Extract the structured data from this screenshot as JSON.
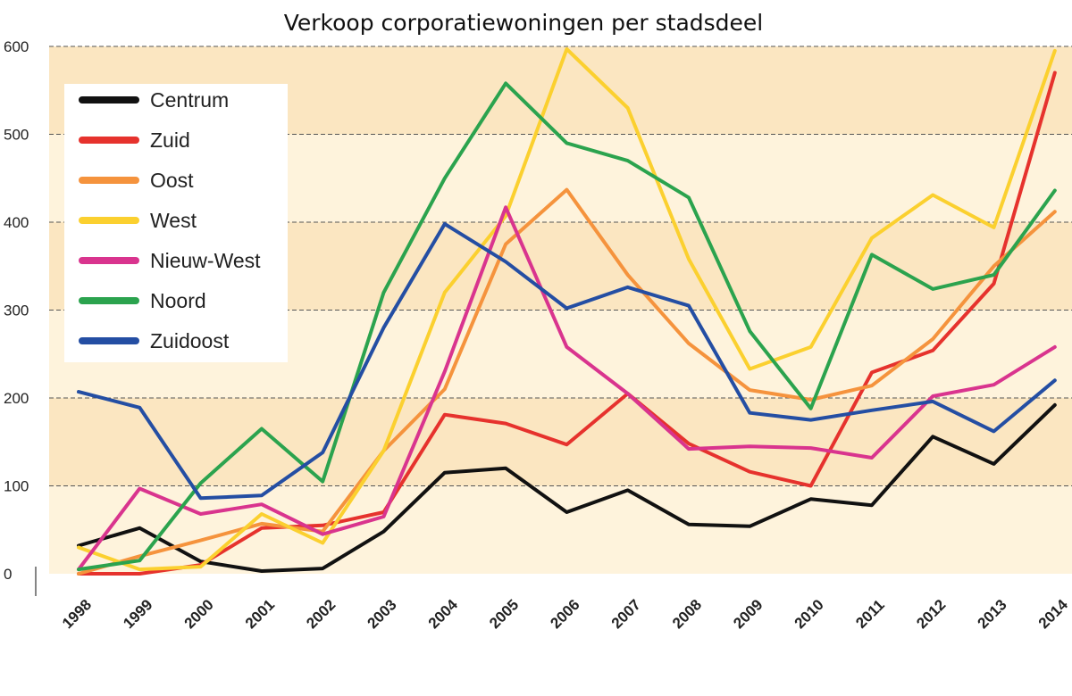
{
  "chart_data": {
    "type": "line",
    "title": "Verkoop corporatiewoningen per stadsdeel",
    "xlabel": "",
    "ylabel": "",
    "ylim": [
      0,
      600
    ],
    "yticks": [
      "0",
      "100",
      "200",
      "300",
      "400",
      "500",
      "600"
    ],
    "categories": [
      "1998",
      "1999",
      "2000",
      "2001",
      "2002",
      "2003",
      "2004",
      "2005",
      "2006",
      "2007",
      "2008",
      "2009",
      "2010",
      "2011",
      "2012",
      "2013",
      "2014"
    ],
    "grid": "horizontal dashed",
    "legend_position": "top-left",
    "background_bands": [
      "#fef3dc",
      "#fbe6c1"
    ],
    "series": [
      {
        "name": "Centrum",
        "color": "#111111",
        "values": [
          32,
          52,
          14,
          3,
          6,
          48,
          115,
          120,
          70,
          95,
          56,
          54,
          85,
          78,
          156,
          125,
          192
        ]
      },
      {
        "name": "Zuid",
        "color": "#e6322d",
        "values": [
          0,
          0,
          10,
          52,
          55,
          70,
          181,
          171,
          147,
          205,
          148,
          116,
          100,
          229,
          254,
          330,
          570
        ]
      },
      {
        "name": "Oost",
        "color": "#f5933d",
        "values": [
          0,
          20,
          38,
          57,
          48,
          140,
          210,
          375,
          437,
          340,
          262,
          209,
          198,
          214,
          267,
          350,
          412
        ]
      },
      {
        "name": "West",
        "color": "#fbd02f",
        "values": [
          30,
          5,
          8,
          68,
          35,
          140,
          320,
          407,
          597,
          530,
          358,
          233,
          258,
          382,
          431,
          394,
          595
        ]
      },
      {
        "name": "Nieuw-West",
        "color": "#d9348e",
        "values": [
          5,
          97,
          68,
          79,
          45,
          65,
          230,
          417,
          258,
          205,
          142,
          145,
          143,
          132,
          202,
          215,
          258
        ]
      },
      {
        "name": "Noord",
        "color": "#2ba34e",
        "values": [
          5,
          15,
          103,
          165,
          105,
          320,
          450,
          558,
          490,
          470,
          428,
          276,
          188,
          363,
          324,
          340,
          436
        ]
      },
      {
        "name": "Zuidoost",
        "color": "#244ea3",
        "values": [
          207,
          189,
          86,
          89,
          138,
          280,
          398,
          355,
          302,
          326,
          305,
          183,
          175,
          186,
          196,
          162,
          220
        ]
      }
    ]
  }
}
